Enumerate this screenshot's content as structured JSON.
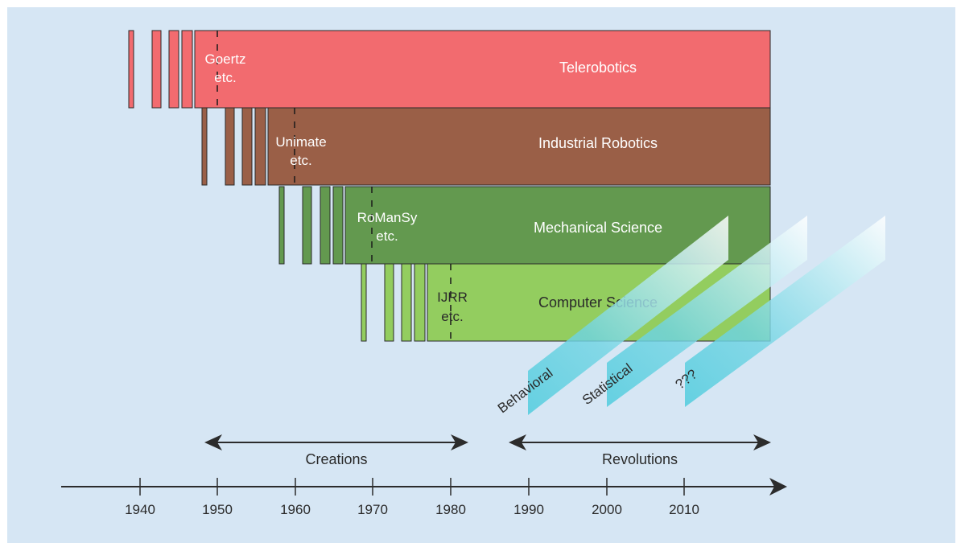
{
  "eras": [
    {
      "field": "Telerobotics",
      "milestone": [
        "Goertz",
        "etc."
      ],
      "color": "#f26b6f"
    },
    {
      "field": "Industrial Robotics",
      "milestone": [
        "Unimate",
        "etc."
      ],
      "color": "#9a5f47"
    },
    {
      "field": "Mechanical Science",
      "milestone": [
        "RoManSy",
        "etc."
      ],
      "color": "#63994f"
    },
    {
      "field": "Computer Science",
      "milestone": [
        "IJRR",
        "etc."
      ],
      "color": "#93cd5f"
    }
  ],
  "revolutions": [
    {
      "label": "Behavioral"
    },
    {
      "label": "Statistical"
    },
    {
      "label": "???"
    }
  ],
  "periods": [
    {
      "label": "Creations"
    },
    {
      "label": "Revolutions"
    }
  ],
  "axis": {
    "years": [
      "1940",
      "1950",
      "1960",
      "1970",
      "1980",
      "1990",
      "2000",
      "2010"
    ]
  },
  "colors": {
    "background": "#d6e6f4",
    "ribbon": "#5ecfe0",
    "axis": "#2c2c2c"
  }
}
